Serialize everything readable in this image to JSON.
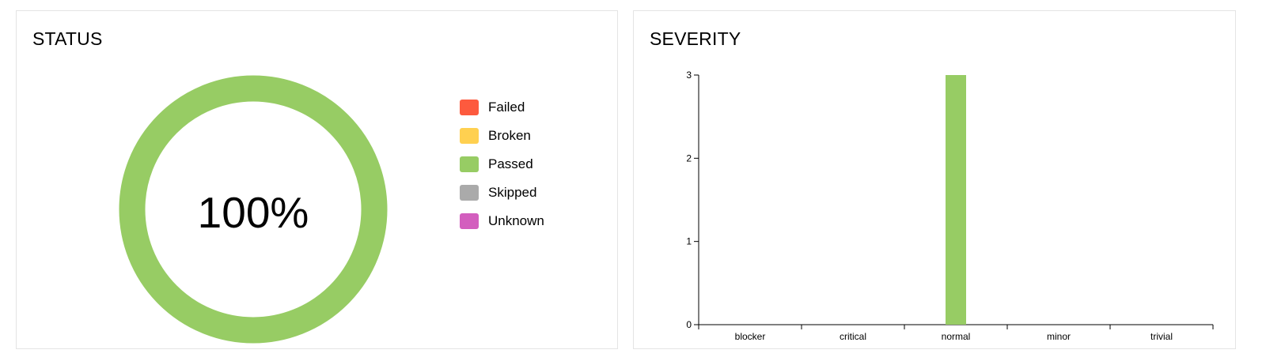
{
  "status": {
    "title": "STATUS",
    "percent_label": "100%",
    "passed_fraction": 1.0,
    "legend": [
      {
        "key": "failed",
        "label": "Failed",
        "color": "#fd5a3e"
      },
      {
        "key": "broken",
        "label": "Broken",
        "color": "#ffd050"
      },
      {
        "key": "passed",
        "label": "Passed",
        "color": "#97cc64"
      },
      {
        "key": "skipped",
        "label": "Skipped",
        "color": "#aaaaaa"
      },
      {
        "key": "unknown",
        "label": "Unknown",
        "color": "#d35ebe"
      }
    ]
  },
  "severity": {
    "title": "SEVERITY"
  },
  "chart_data": {
    "type": "bar",
    "categories": [
      "blocker",
      "critical",
      "normal",
      "minor",
      "trivial"
    ],
    "values": [
      0,
      0,
      3,
      0,
      0
    ],
    "yticks": [
      0,
      1,
      2,
      3
    ],
    "ylim": [
      0,
      3
    ],
    "bar_color": "#97cc64",
    "grid": false
  }
}
